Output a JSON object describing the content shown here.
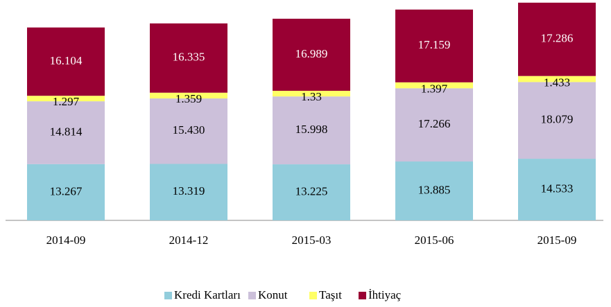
{
  "chart_data": {
    "type": "stacked_bar",
    "categories": [
      "2014-09",
      "2014-12",
      "2015-03",
      "2015-06",
      "2015-09"
    ],
    "series": [
      {
        "name": "Kredi Kartları",
        "color": "#92cddc",
        "values": [
          13.267,
          13.319,
          13.225,
          13.885,
          14.533
        ]
      },
      {
        "name": "Konut",
        "color": "#ccc0da",
        "values": [
          14.814,
          15.43,
          15.998,
          17.266,
          18.079
        ],
        "value_labels": [
          "14.814",
          "15.430",
          "15.998",
          "17.266",
          "18.079"
        ]
      },
      {
        "name": "Taşıt",
        "color": "#ffff66",
        "values": [
          1.297,
          1.359,
          1.33,
          1.397,
          1.433
        ]
      },
      {
        "name": "İhtiyaç",
        "color": "#990033",
        "values": [
          16.104,
          16.335,
          16.989,
          17.159,
          17.286
        ]
      }
    ],
    "legend": "bottom"
  }
}
